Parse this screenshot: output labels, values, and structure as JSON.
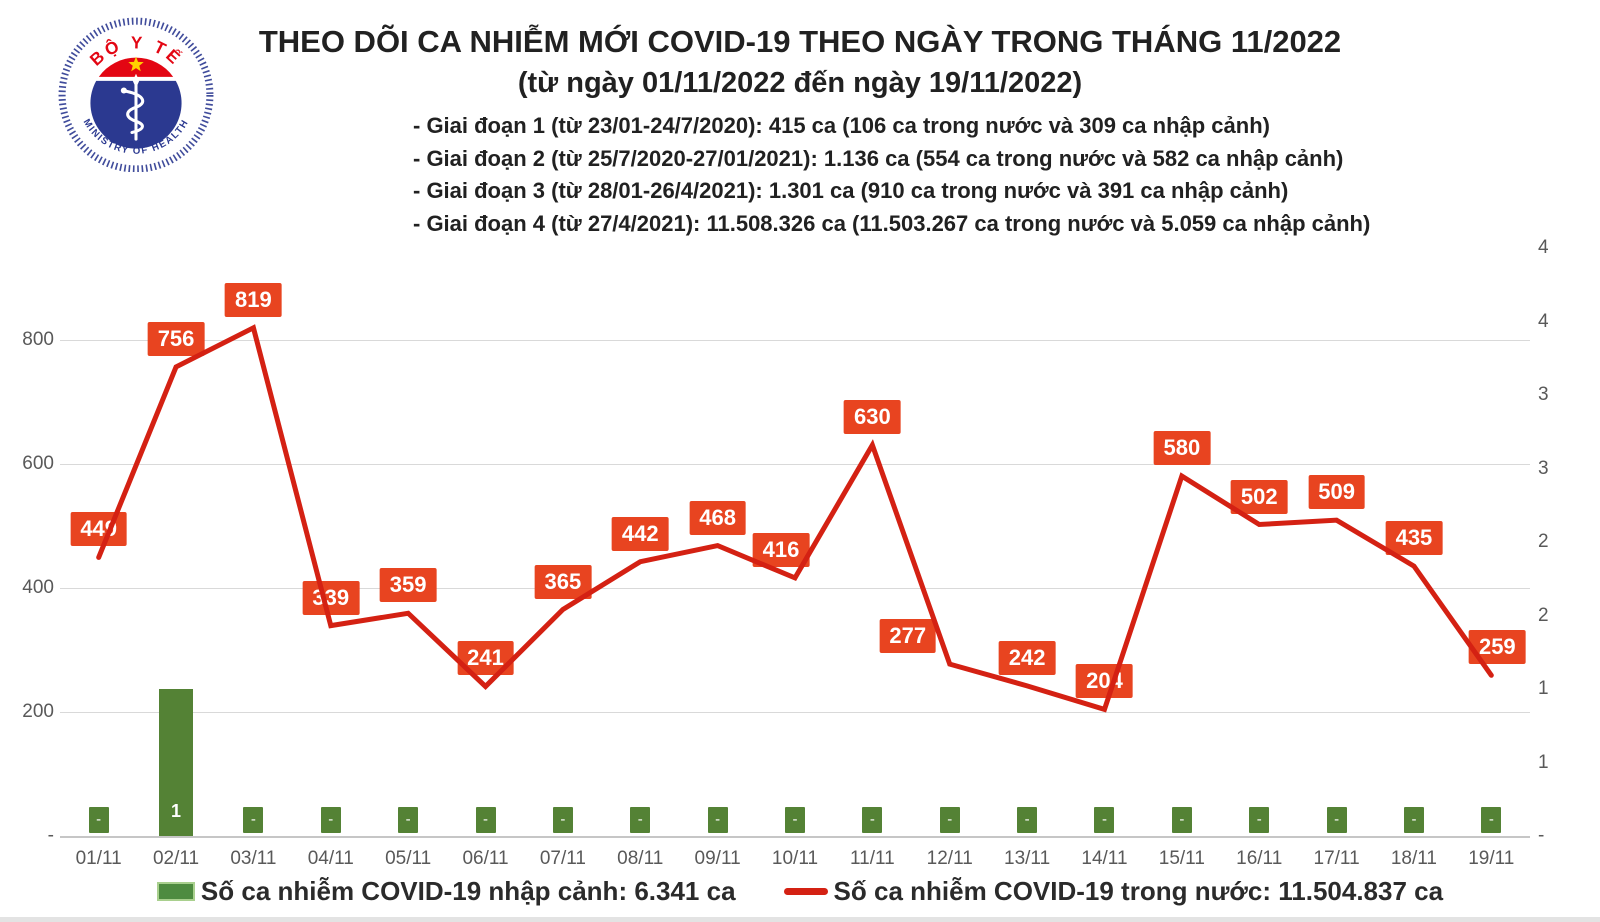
{
  "header": {
    "logo": {
      "top_text": "BỘ Y TẾ",
      "bottom_text": "MINISTRY OF HEALTH"
    },
    "title_line1": "THEO DÕI CA NHIỄM MỚI COVID-19 THEO NGÀY TRONG THÁNG 11/2022",
    "title_line2": "(từ ngày 01/11/2022 đến ngày 19/11/2022)",
    "bullets": [
      "- Giai đoạn 1 (từ 23/01-24/7/2020): 415 ca (106 ca trong nước và 309 ca nhập cảnh)",
      "- Giai đoạn 2 (từ 25/7/2020-27/01/2021): 1.136 ca (554 ca trong nước và 582 ca nhập cảnh)",
      "- Giai đoạn 3 (từ 28/01-26/4/2021): 1.301 ca (910 ca trong nước và 391 ca nhập cảnh)",
      "- Giai đoạn 4 (từ 27/4/2021): 11.508.326 ca (11.503.267 ca trong nước và 5.059 ca nhập cảnh)"
    ]
  },
  "chart_data": {
    "type": "combo",
    "categories": [
      "01/11",
      "02/11",
      "03/11",
      "04/11",
      "05/11",
      "06/11",
      "07/11",
      "08/11",
      "09/11",
      "10/11",
      "11/11",
      "12/11",
      "13/11",
      "14/11",
      "15/11",
      "16/11",
      "17/11",
      "18/11",
      "19/11"
    ],
    "series": [
      {
        "name": "Số ca nhiễm COVID-19 trong nước",
        "type": "line",
        "axis": "left",
        "values": [
          449,
          756,
          819,
          339,
          359,
          241,
          365,
          442,
          468,
          416,
          630,
          277,
          242,
          204,
          580,
          502,
          509,
          435,
          259
        ]
      },
      {
        "name": "Số ca nhiễm COVID-19 nhập cảnh",
        "type": "bar",
        "axis": "right",
        "values": [
          0,
          1,
          0,
          0,
          0,
          0,
          0,
          0,
          0,
          0,
          0,
          0,
          0,
          0,
          0,
          0,
          0,
          0,
          0
        ],
        "display_labels": [
          "-",
          "1",
          "-",
          "-",
          "-",
          "-",
          "-",
          "-",
          "-",
          "-",
          "-",
          "-",
          "-",
          "-",
          "-",
          "-",
          "-",
          "-",
          "-"
        ]
      }
    ],
    "left_axis": {
      "ticks": [
        "800",
        "600",
        "400",
        "200",
        "-"
      ],
      "tick_values": [
        800,
        600,
        400,
        200,
        0
      ],
      "max": 960,
      "grid": true
    },
    "right_axis": {
      "labels_top_to_bottom": [
        "4",
        "4",
        "3",
        "3",
        "2",
        "2",
        "1",
        "1",
        "-"
      ],
      "max": 4,
      "min": 0,
      "step": 0.5
    },
    "legend": [
      {
        "swatch": "bar",
        "label": "Số ca nhiễm COVID-19 nhập cảnh: 6.341 ca"
      },
      {
        "swatch": "line",
        "label": "Số ca nhiễm COVID-19 trong nước: 11.504.837 ca"
      }
    ]
  },
  "colors": {
    "line_red": "#d42113",
    "label_box_red": "#e84420",
    "bar_green": "#548235",
    "swatch_border_green": "#a9d08e",
    "axis_text": "#595959",
    "gridline": "#d9d9d9",
    "title_text": "#212121",
    "logo_red": "#e30613",
    "logo_blue": "#2b3990",
    "star_yellow": "#ffd100"
  }
}
